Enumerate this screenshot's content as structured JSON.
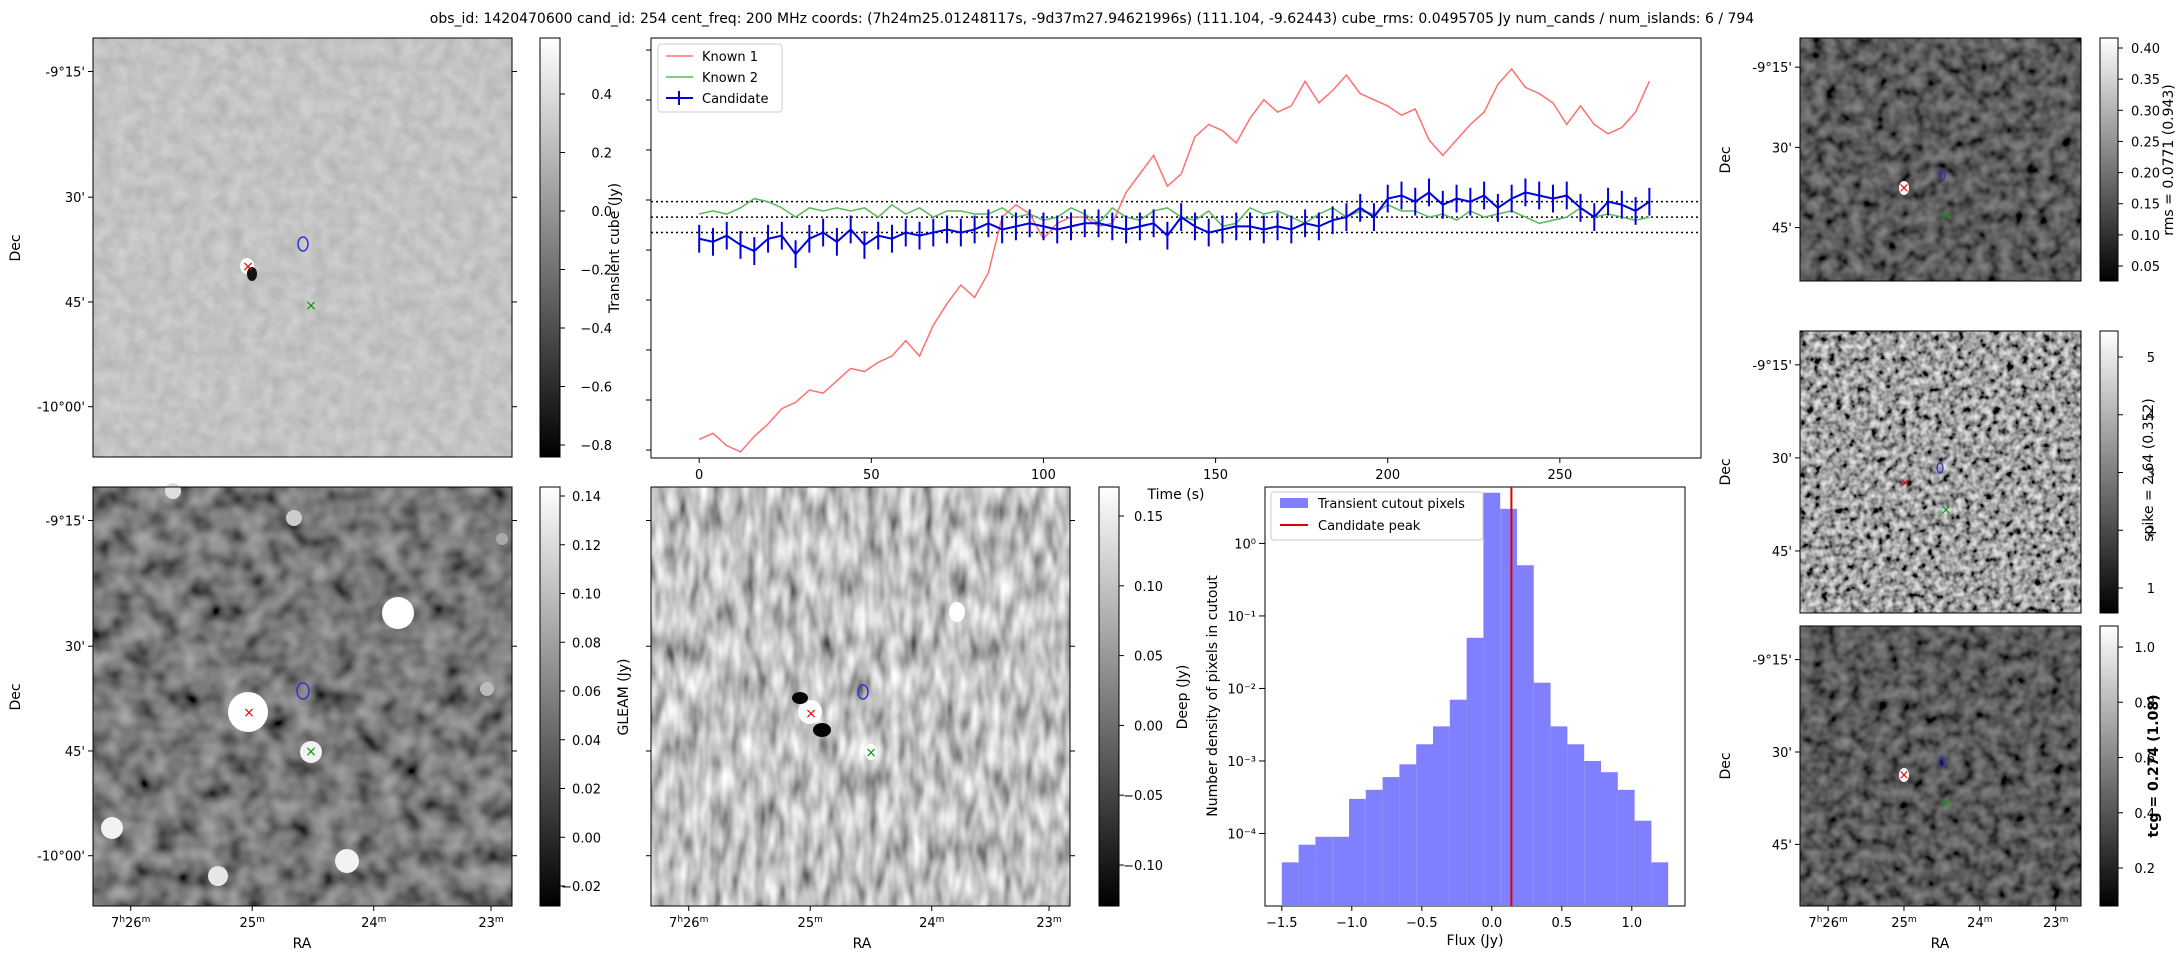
{
  "title": "obs_id: 1420470600 cand_id: 254 cent_freq: 200 MHz coords: (7h24m25.01248117s, -9d37m27.94621996s) (111.104, -9.62443) cube_rms: 0.0495705 Jy num_cands / num_islands: 6 / 794",
  "colors": {
    "known1": "#ff7070",
    "known2": "#5cb85c",
    "candidate": "#0000dd",
    "hist": "#8080ff",
    "peak": "#dd0000"
  },
  "sky_axes": {
    "ra_ticks": [
      "7h26m",
      "25m",
      "24m",
      "23m"
    ],
    "dec_ticks": [
      "-9°15'",
      "30'",
      "45'",
      "-10°00'"
    ],
    "xlabel": "RA",
    "ylabel": "Dec"
  },
  "chart_data": [
    {
      "type": "line",
      "name": "lightcurve",
      "xlabel": "Time (s)",
      "xlim": [
        -14,
        291
      ],
      "ylim": [
        -0.78,
        0.58
      ],
      "x_ticks": [
        0,
        50,
        100,
        150,
        200,
        250
      ],
      "threshold_lines": [
        0.05,
        0.0,
        -0.05
      ],
      "legend": [
        "Known 1",
        "Known 2",
        "Candidate"
      ],
      "x": [
        0,
        4,
        8,
        12,
        16,
        20,
        24,
        28,
        32,
        36,
        40,
        44,
        48,
        52,
        56,
        60,
        64,
        68,
        72,
        76,
        80,
        84,
        88,
        92,
        96,
        100,
        104,
        108,
        112,
        116,
        120,
        124,
        128,
        132,
        136,
        140,
        144,
        148,
        152,
        156,
        160,
        164,
        168,
        172,
        176,
        180,
        184,
        188,
        192,
        196,
        200,
        204,
        208,
        212,
        216,
        220,
        224,
        228,
        232,
        236,
        240,
        244,
        248,
        252,
        256,
        260,
        264,
        268,
        272,
        276
      ],
      "series": [
        {
          "name": "Known 1",
          "values": [
            -0.72,
            -0.7,
            -0.74,
            -0.76,
            -0.71,
            -0.67,
            -0.62,
            -0.6,
            -0.56,
            -0.57,
            -0.53,
            -0.49,
            -0.5,
            -0.47,
            -0.45,
            -0.4,
            -0.45,
            -0.35,
            -0.28,
            -0.22,
            -0.26,
            -0.18,
            0.0,
            0.04,
            0.01,
            -0.07,
            -0.02,
            0.0,
            0.0,
            -0.03,
            -0.02,
            0.08,
            0.14,
            0.2,
            0.1,
            0.14,
            0.26,
            0.3,
            0.28,
            0.24,
            0.32,
            0.38,
            0.34,
            0.36,
            0.44,
            0.37,
            0.41,
            0.46,
            0.4,
            0.38,
            0.36,
            0.33,
            0.35,
            0.25,
            0.2,
            0.25,
            0.3,
            0.34,
            0.43,
            0.48,
            0.42,
            0.4,
            0.37,
            0.3,
            0.36,
            0.3,
            0.27,
            0.29,
            0.34,
            0.44
          ]
        },
        {
          "name": "Known 2",
          "values": [
            0.01,
            0.02,
            0.01,
            0.03,
            0.06,
            0.05,
            0.03,
            0.0,
            0.03,
            0.02,
            0.03,
            0.02,
            0.03,
            0.0,
            0.04,
            0.01,
            0.03,
            0.0,
            0.02,
            0.02,
            0.01,
            0.01,
            0.03,
            0.0,
            0.01,
            -0.01,
            0.0,
            0.03,
            0.01,
            -0.02,
            0.03,
            0.0,
            -0.01,
            0.02,
            0.03,
            0.0,
            -0.01,
            0.02,
            -0.03,
            -0.02,
            0.03,
            0.01,
            0.02,
            0.0,
            -0.02,
            0.01,
            0.03,
            0.0,
            0.02,
            0.01,
            0.04,
            0.02,
            0.02,
            0.0,
            0.01,
            -0.01,
            0.02,
            0.0,
            0.01,
            0.02,
            0.0,
            -0.02,
            -0.01,
            0.0,
            0.03,
            0.0,
            0.01,
            0.0,
            -0.01,
            0.0
          ]
        },
        {
          "name": "Candidate",
          "values": [
            -0.07,
            -0.08,
            -0.06,
            -0.09,
            -0.11,
            -0.07,
            -0.06,
            -0.12,
            -0.07,
            -0.05,
            -0.08,
            -0.04,
            -0.09,
            -0.06,
            -0.07,
            -0.05,
            -0.06,
            -0.05,
            -0.04,
            -0.05,
            -0.04,
            -0.02,
            -0.04,
            -0.03,
            -0.02,
            -0.03,
            -0.04,
            -0.03,
            -0.02,
            -0.02,
            -0.03,
            -0.04,
            -0.03,
            -0.02,
            -0.06,
            0.0,
            -0.03,
            -0.05,
            -0.04,
            -0.03,
            -0.03,
            -0.04,
            -0.03,
            -0.04,
            -0.02,
            -0.03,
            -0.01,
            0.0,
            0.03,
            0.0,
            0.06,
            0.07,
            0.05,
            0.08,
            0.04,
            0.06,
            0.05,
            0.07,
            0.03,
            0.06,
            0.08,
            0.07,
            0.06,
            0.07,
            0.03,
            0.0,
            0.05,
            0.04,
            0.02,
            0.05
          ]
        }
      ]
    },
    {
      "type": "bar",
      "name": "histogram",
      "xlabel": "Flux (Jy)",
      "ylabel": "Number density of pixels in cutout",
      "xlim": [
        -1.62,
        1.38
      ],
      "x_ticks": [
        -1.5,
        -1.0,
        -0.5,
        0.0,
        0.5,
        1.0
      ],
      "x_tick_labels": [
        "−1.5",
        "−1.0",
        "−0.5",
        "0.0",
        "0.5",
        "1.0"
      ],
      "y_scale": "log",
      "ylim": [
        1e-05,
        6
      ],
      "y_ticks": [
        0.0001,
        0.001,
        0.01,
        0.1,
        1
      ],
      "y_tick_labels": [
        "10⁻⁴",
        "10⁻³",
        "10⁻²",
        "10⁻¹",
        "10⁰"
      ],
      "bin_start": -1.5,
      "bin_width": 0.12,
      "values": [
        4e-05,
        7e-05,
        9e-05,
        9e-05,
        0.0003,
        0.0004,
        0.0006,
        0.0009,
        0.0017,
        0.003,
        0.007,
        0.05,
        5.0,
        3.0,
        0.5,
        0.012,
        0.003,
        0.0017,
        0.001,
        0.0007,
        0.0004,
        0.00015,
        4e-05
      ],
      "peak_flux": 0.14,
      "legend": [
        "Transient cutout pixels",
        "Candidate peak"
      ]
    }
  ],
  "panels": {
    "transient": {
      "cbar_label": "Transient cube (Jy)",
      "cbar_ticks": [
        "0.4",
        "0.2",
        "0.0",
        "−0.2",
        "−0.4",
        "−0.6",
        "−0.8"
      ]
    },
    "gleam": {
      "cbar_label": "GLEAM (Jy)",
      "cbar_ticks": [
        "0.14",
        "0.12",
        "0.10",
        "0.08",
        "0.06",
        "0.04",
        "0.02",
        "0.00",
        "−0.02"
      ]
    },
    "deep": {
      "cbar_label": "Deep (Jy)",
      "cbar_ticks": [
        "0.15",
        "0.10",
        "0.05",
        "0.00",
        "−0.05",
        "−0.10"
      ]
    },
    "rms": {
      "cbar_label": "rms = 0.0771 (0.943)",
      "cbar_ticks": [
        "0.40",
        "0.35",
        "0.30",
        "0.25",
        "0.20",
        "0.15",
        "0.10",
        "0.05"
      ]
    },
    "spike": {
      "cbar_label": "spike = 2.64 (0.352)",
      "cbar_ticks": [
        "5",
        "4",
        "3",
        "2",
        "1"
      ]
    },
    "tcg": {
      "cbar_label": "tcg = 0.274 (1.08)",
      "cbar_ticks": [
        "1.0",
        "0.8",
        "0.6",
        "0.4",
        "0.2"
      ]
    }
  }
}
